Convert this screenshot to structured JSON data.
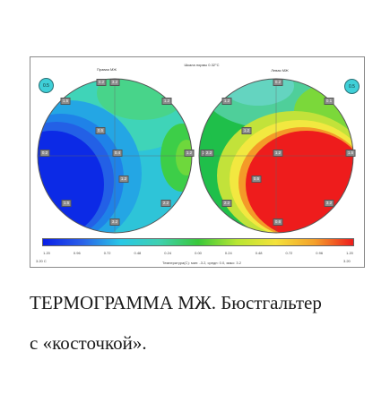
{
  "panel": {
    "scale_caption": "Шкала нормы 0.32°C",
    "left_title": "Правая МЖ",
    "right_title": "Левая МЖ",
    "left_badge": "0.5",
    "right_badge": "0.5"
  },
  "colors": {
    "deep_blue": "#0a1ee6",
    "blue": "#2a5fe8",
    "cyan": "#28c8e6",
    "teal": "#3fd0b0",
    "green": "#39c83a",
    "yellow_green": "#b8e632",
    "red": "#ee1c1c"
  },
  "left_points": [
    "3.2",
    "1.5",
    "1.2",
    "0.2",
    "0.4",
    "1.2",
    "1.5",
    "2.2",
    "3.2",
    "0.2",
    "0.5",
    "1.2"
  ],
  "right_points": [
    "0.2",
    "1.2",
    "0.1",
    "2.2",
    "1.2",
    "1.5",
    "2.2",
    "3.2",
    "0.6",
    "2.2",
    "1.2",
    "0.5"
  ],
  "colorbar": {
    "ticks": [
      "1.20",
      "0.96",
      "0.72",
      "0.48",
      "0.24",
      "0.00",
      "0.24",
      "0.48",
      "0.72",
      "0.96",
      "1.20"
    ],
    "min_label": "3.20 С",
    "max_label": "3.20",
    "stats": "Температура(С): мин: -3.2, средн: 0.0, макс: 3.2"
  },
  "caption": {
    "line1": "ТЕРМОГРАММА МЖ. Бюстгальтер",
    "line2": "с «косточкой»."
  }
}
